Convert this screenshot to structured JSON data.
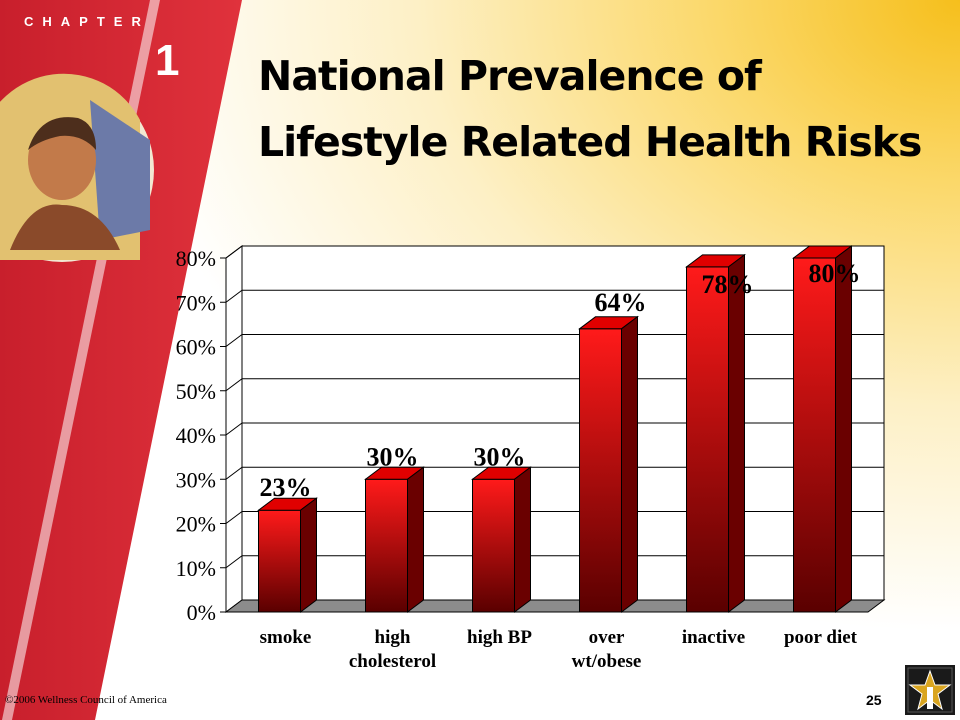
{
  "slide": {
    "chapter_word": "CHAPTER",
    "chapter_number": "1",
    "title_line1": "National Prevalence of",
    "title_line2": "Lifestyle Related Health Risks",
    "footer": "©2006 Wellness Council of America",
    "page_number": "25",
    "colors": {
      "sidebar": "#d2222f",
      "bar": "#e10000",
      "accent_yellow": "#f6bf1c"
    }
  },
  "chart_data": {
    "type": "bar",
    "categories": [
      [
        "smoke"
      ],
      [
        "high",
        "cholesterol"
      ],
      [
        "high BP"
      ],
      [
        "over",
        "wt/obese"
      ],
      [
        "inactive"
      ],
      [
        "poor diet"
      ]
    ],
    "values": [
      23,
      30,
      30,
      64,
      78,
      80
    ],
    "data_labels": [
      "23%",
      "30%",
      "30%",
      "64%",
      "78%",
      "80%"
    ],
    "y_ticks": [
      "0%",
      "10%",
      "20%",
      "30%",
      "40%",
      "50%",
      "60%",
      "70%",
      "80%"
    ],
    "ylim": [
      0,
      80
    ],
    "grid": true,
    "legend": "none",
    "bar_style": "3d"
  }
}
